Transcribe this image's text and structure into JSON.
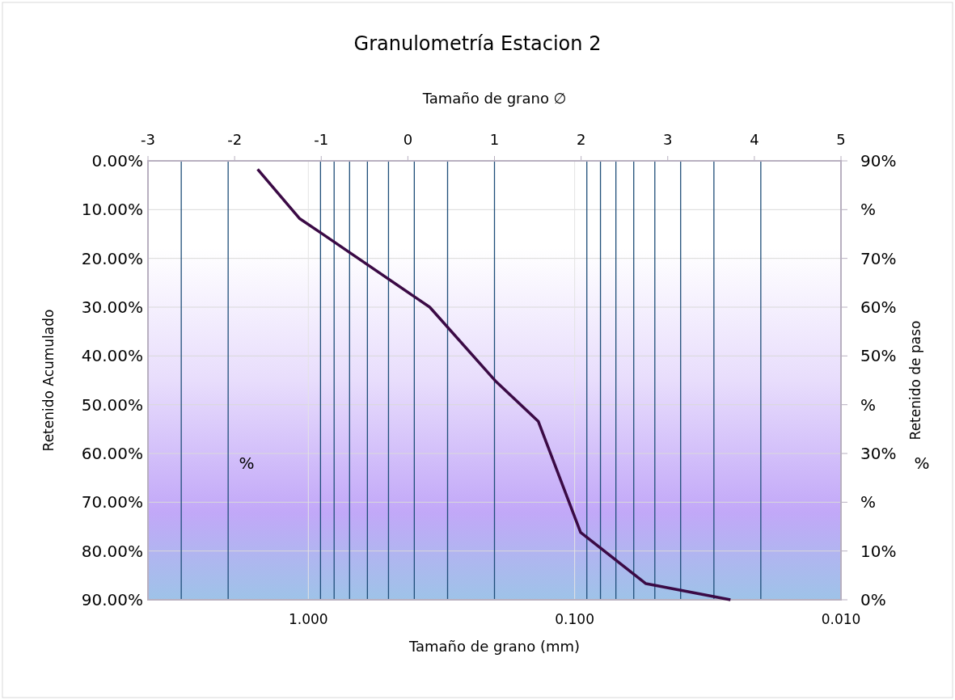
{
  "chart_data": {
    "type": "line",
    "title": "Granulometría Estacion 2",
    "xlabel": "Tamaño de grano (mm)",
    "x2label": "Tamaño de grano ∅",
    "ylabel": "Retenido Acumulado",
    "y2label": "Retenido de paso",
    "log": "x",
    "xlim": [
      4,
      0.01
    ],
    "xticks": [
      {
        "value": 1,
        "label": "1.000"
      },
      {
        "value": 0.1,
        "label": "0.100"
      },
      {
        "value": 0.01,
        "label": "0.010"
      }
    ],
    "x2lim": [
      -3,
      5
    ],
    "x2ticks": [
      -3,
      -2,
      -1,
      0,
      1,
      2,
      3,
      4,
      5
    ],
    "ylim": [
      90,
      0
    ],
    "yticks": [
      {
        "value": 0,
        "label": "0.00%"
      },
      {
        "value": 10,
        "label": "10.00%"
      },
      {
        "value": 20,
        "label": "20.00%"
      },
      {
        "value": 30,
        "label": "30.00%"
      },
      {
        "value": 40,
        "label": "40.00%"
      },
      {
        "value": 50,
        "label": "50.00%"
      },
      {
        "value": 60,
        "label": "60.00%"
      },
      {
        "value": 70,
        "label": "70.00%"
      },
      {
        "value": 80,
        "label": "80.00%"
      },
      {
        "value": 90,
        "label": "90.00%"
      }
    ],
    "y2lim": [
      0,
      90
    ],
    "y2ticks": [
      {
        "value": 0,
        "label": "0%"
      },
      {
        "value": 10,
        "label": "10%"
      },
      {
        "value": 20,
        "label": "%"
      },
      {
        "value": 30,
        "label": "30%"
      },
      {
        "value": 40,
        "label": "%"
      },
      {
        "value": 50,
        "label": "50%"
      },
      {
        "value": 60,
        "label": "60%"
      },
      {
        "value": 70,
        "label": "70%"
      },
      {
        "value": 80,
        "label": "%"
      },
      {
        "value": 90,
        "label": "90%"
      }
    ],
    "grid": true,
    "marker": "none",
    "line_style": "solid",
    "series": [
      {
        "color": "#3b0a45",
        "x": [
          1.55,
          1.08,
          0.89,
          0.35,
          0.197,
          0.137,
          0.095,
          0.054,
          0.026
        ],
        "values": [
          1.7,
          11.8,
          14.9,
          30.0,
          45.3,
          53.4,
          76.2,
          86.7,
          90.0
        ]
      }
    ],
    "ref_lines": [
      {
        "axis": "x",
        "value": 3.0,
        "color": "#1f4e79"
      },
      {
        "axis": "x",
        "value": 2.0,
        "color": "#1f4e79"
      },
      {
        "axis": "x",
        "value": 0.9,
        "color": "#1f4e79"
      },
      {
        "axis": "x",
        "value": 0.8,
        "color": "#1f4e79"
      },
      {
        "axis": "x",
        "value": 0.7,
        "color": "#1f4e79"
      },
      {
        "axis": "x",
        "value": 0.6,
        "color": "#1f4e79"
      },
      {
        "axis": "x",
        "value": 0.5,
        "color": "#1f4e79"
      },
      {
        "axis": "x",
        "value": 0.4,
        "color": "#1f4e79"
      },
      {
        "axis": "x",
        "value": 0.3,
        "color": "#1f4e79"
      },
      {
        "axis": "x",
        "value": 0.2,
        "color": "#1f4e79"
      },
      {
        "axis": "x",
        "value": 0.09,
        "color": "#1f4e79"
      },
      {
        "axis": "x",
        "value": 0.08,
        "color": "#1f4e79"
      },
      {
        "axis": "x",
        "value": 0.07,
        "color": "#1f4e79"
      },
      {
        "axis": "x",
        "value": 0.06,
        "color": "#1f4e79"
      },
      {
        "axis": "x",
        "value": 0.05,
        "color": "#1f4e79"
      },
      {
        "axis": "x",
        "value": 0.04,
        "color": "#1f4e79"
      },
      {
        "axis": "x",
        "value": 0.03,
        "color": "#1f4e79"
      },
      {
        "axis": "x",
        "value": 0.02,
        "color": "#1f4e79"
      }
    ],
    "annotations": [
      "%",
      "%"
    ]
  }
}
